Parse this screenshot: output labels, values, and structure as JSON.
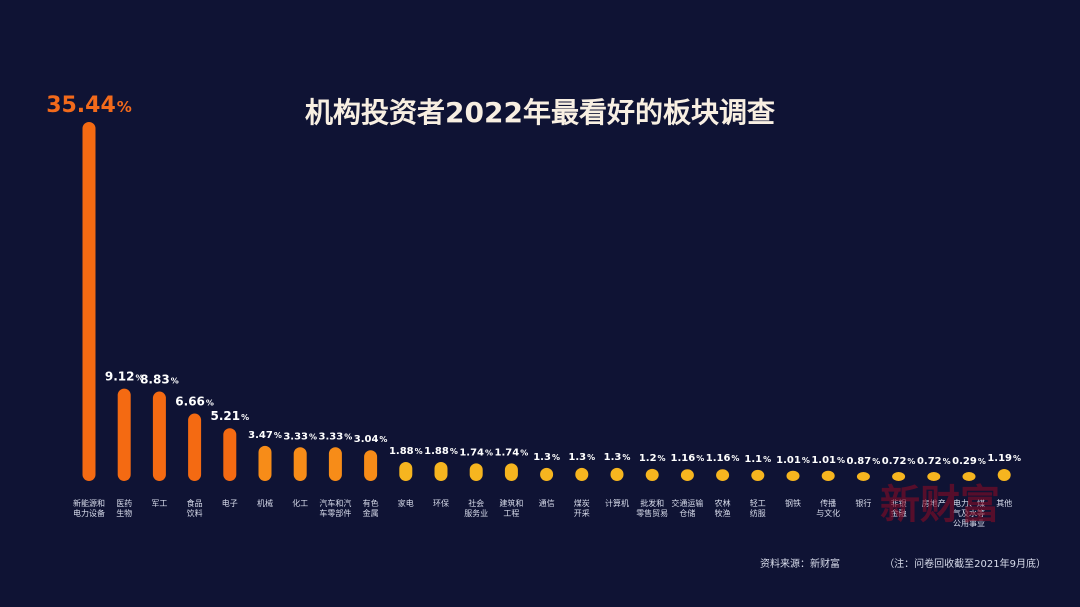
{
  "watermark": "新财富",
  "footer": {
    "source": "资料来源：新财富",
    "note": "（注：问卷回收截至2021年9月底）"
  },
  "colors": {
    "background": "#0f1334",
    "bar_strong": "#f46a12",
    "bar_medium": "#f78c18",
    "bar_light": "#f6b51f",
    "title": "#f8efe2",
    "label": "#ffffff",
    "category": "#d8dceb",
    "highlight_value": "#f26a1b"
  },
  "chart_data": {
    "type": "bar",
    "title": "机构投资者2022年最看好的板块调查",
    "xlabel": "",
    "ylabel": "",
    "ylim": [
      0,
      40
    ],
    "categories": [
      [
        "新能源和",
        "电力设备"
      ],
      [
        "医药",
        "生物"
      ],
      [
        "军工"
      ],
      [
        "食品",
        "饮料"
      ],
      [
        "电子"
      ],
      [
        "机械"
      ],
      [
        "化工"
      ],
      [
        "汽车和汽",
        "车零部件"
      ],
      [
        "有色",
        "金属"
      ],
      [
        "家电"
      ],
      [
        "环保"
      ],
      [
        "社会",
        "服务业"
      ],
      [
        "建筑和",
        "工程"
      ],
      [
        "通信"
      ],
      [
        "煤炭",
        "开采"
      ],
      [
        "计算机"
      ],
      [
        "批发和",
        "零售贸易"
      ],
      [
        "交通运输",
        "仓储"
      ],
      [
        "农林",
        "牧渔"
      ],
      [
        "轻工",
        "纺服"
      ],
      [
        "钢铁"
      ],
      [
        "传播",
        "与文化"
      ],
      [
        "银行"
      ],
      [
        "非银",
        "金融"
      ],
      [
        "房地产"
      ],
      [
        "电力、煤",
        "气及水等",
        "公用事业"
      ],
      [
        "其他"
      ]
    ],
    "values": [
      35.44,
      9.12,
      8.83,
      6.66,
      5.21,
      3.47,
      3.33,
      3.33,
      3.04,
      1.88,
      1.88,
      1.74,
      1.74,
      1.3,
      1.3,
      1.3,
      1.2,
      1.16,
      1.16,
      1.1,
      1.01,
      1.01,
      0.87,
      0.72,
      0.72,
      0.29,
      1.19
    ],
    "value_labels": [
      "35.44",
      "9.12",
      "8.83",
      "6.66",
      "5.21",
      "3.47",
      "3.33",
      "3.33",
      "3.04",
      "1.88",
      "1.88",
      "1.74",
      "1.74",
      "1.3",
      "1.3",
      "1.3",
      "1.2",
      "1.16",
      "1.16",
      "1.1",
      "1.01",
      "1.01",
      "0.87",
      "0.72",
      "0.72",
      "0.29",
      "1.19"
    ],
    "unit": "%"
  }
}
